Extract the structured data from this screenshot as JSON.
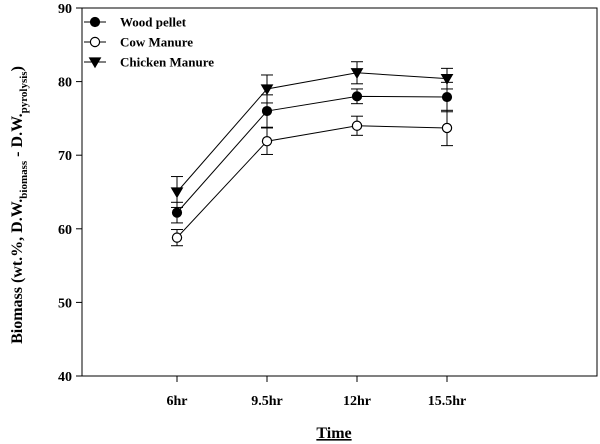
{
  "chart_data": {
    "type": "line",
    "xlabel": "Time",
    "ylabel": {
      "main": "Biomass (wt.%, D.W.",
      "sub1": "biomass",
      "mid": " - D.W.",
      "sub2": "pyrolysis",
      "end": ")"
    },
    "categories": [
      "6hr",
      "9.5hr",
      "12hr",
      "15.5hr"
    ],
    "ylim": [
      40,
      90
    ],
    "yticks": [
      "40",
      "50",
      "60",
      "70",
      "80",
      "90"
    ],
    "legend_position": "top-left",
    "grid": false,
    "series": [
      {
        "name": "Wood pellet",
        "marker": "filled-circle",
        "values": [
          62.2,
          76.0,
          78.0,
          77.9
        ],
        "errors": [
          1.4,
          2.2,
          1.0,
          2.0
        ]
      },
      {
        "name": "Cow Manure",
        "marker": "open-circle",
        "values": [
          58.8,
          71.9,
          74.0,
          73.7
        ],
        "errors": [
          1.1,
          1.8,
          1.3,
          2.4
        ]
      },
      {
        "name": "Chicken Manure",
        "marker": "filled-triangle-down",
        "values": [
          65.0,
          79.0,
          81.2,
          80.4
        ],
        "errors": [
          2.1,
          1.9,
          1.5,
          1.4
        ]
      }
    ]
  }
}
